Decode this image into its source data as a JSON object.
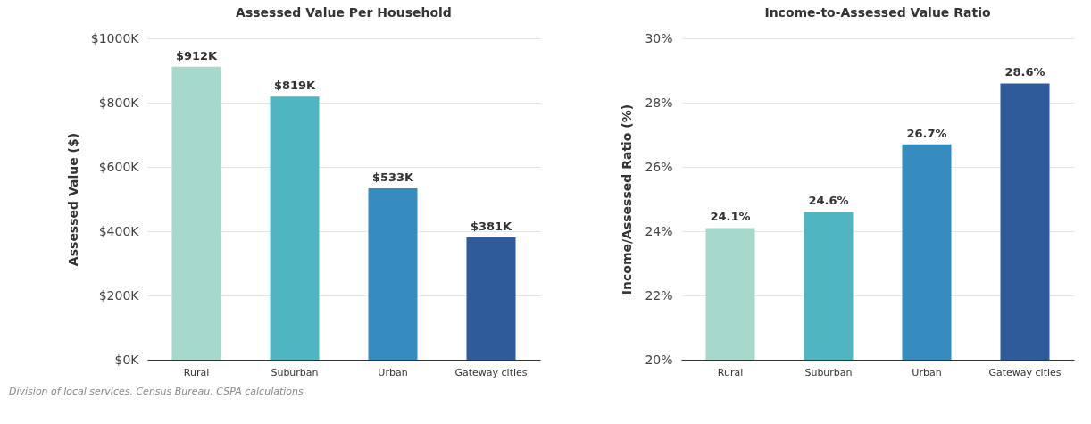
{
  "chart_data": [
    {
      "type": "bar",
      "title": "Assessed Value Per Household",
      "ylabel": "Assessed Value ($)",
      "categories": [
        "Rural",
        "Suburban",
        "Urban",
        "Gateway cities"
      ],
      "values": [
        912,
        819,
        533,
        381
      ],
      "colors": [
        "#a6d9cc",
        "#4fb5c1",
        "#368cbf",
        "#2e5c9a"
      ],
      "value_labels": [
        "$912K",
        "$819K",
        "$533K",
        "$381K"
      ],
      "ylim": [
        0,
        1000
      ],
      "yticks": [
        {
          "value": 0,
          "label": "$0K"
        },
        {
          "value": 200,
          "label": "$200K"
        },
        {
          "value": 400,
          "label": "$400K"
        },
        {
          "value": 600,
          "label": "$600K"
        },
        {
          "value": 800,
          "label": "$800K"
        },
        {
          "value": 1000,
          "label": "$1000K"
        }
      ],
      "grid": "y",
      "annotations": [
        "Division of local services. Census Bureau. CSPA calculations"
      ]
    },
    {
      "type": "bar",
      "title": "Income-to-Assessed Value Ratio",
      "ylabel": "Income/Assessed Ratio (%)",
      "categories": [
        "Rural",
        "Suburban",
        "Urban",
        "Gateway cities"
      ],
      "values": [
        24.1,
        24.6,
        26.7,
        28.6
      ],
      "colors": [
        "#a6d9cc",
        "#4fb5c1",
        "#368cbf",
        "#2e5c9a"
      ],
      "value_labels": [
        "24.1%",
        "24.6%",
        "26.7%",
        "28.6%"
      ],
      "ylim": [
        20,
        30
      ],
      "yticks": [
        {
          "value": 20,
          "label": "20%"
        },
        {
          "value": 22,
          "label": "22%"
        },
        {
          "value": 24,
          "label": "24%"
        },
        {
          "value": 26,
          "label": "26%"
        },
        {
          "value": 28,
          "label": "28%"
        },
        {
          "value": 30,
          "label": "30%"
        }
      ],
      "grid": "y"
    }
  ]
}
